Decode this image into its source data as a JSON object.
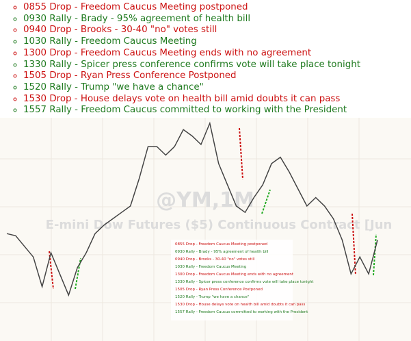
{
  "events": [
    {
      "text": "0855 Drop - Freedom Caucus Meeting postponed",
      "color": "#cc1111"
    },
    {
      "text": "0930 Rally - Brady - 95% agreement of health bill",
      "color": "#1f7a1f"
    },
    {
      "text": "0940 Drop - Brooks - 30-40 \"no\" votes still",
      "color": "#cc1111"
    },
    {
      "text": "1030 Rally - Freedom Caucus Meeting",
      "color": "#1f7a1f"
    },
    {
      "text": "1300 Drop - Freedom Caucus Meeting ends with no agreement",
      "color": "#cc1111"
    },
    {
      "text": "1330 Rally - Spicer press conference confirms vote will take place tonight",
      "color": "#1f7a1f"
    },
    {
      "text": "1505 Drop - Ryan Press Conference Postponed",
      "color": "#cc1111"
    },
    {
      "text": "1520 Rally - Trump \"we have a chance\"",
      "color": "#1f7a1f"
    },
    {
      "text": "1530 Drop - House delays vote on health bill amid doubts it can pass",
      "color": "#cc1111"
    },
    {
      "text": "1557 Rally - Freedom Caucus committed to working with the President",
      "color": "#1f7a1f"
    }
  ],
  "chart_data": {
    "type": "line",
    "watermark": "@YM,1M",
    "subtitle": "E-mini Dow Futures ($5) Continuous Contract [Jun",
    "color": "#444444",
    "ylim": [
      0,
      100
    ],
    "values": [
      48,
      47,
      42,
      37,
      23,
      39,
      29,
      19,
      32,
      39,
      48,
      52,
      55,
      58,
      61,
      74,
      89,
      89,
      85,
      89,
      97,
      94,
      90,
      100,
      81,
      71,
      61,
      58,
      65,
      71,
      81,
      84,
      77,
      69,
      61,
      65,
      61,
      55,
      45,
      29,
      37,
      29,
      45
    ]
  }
}
